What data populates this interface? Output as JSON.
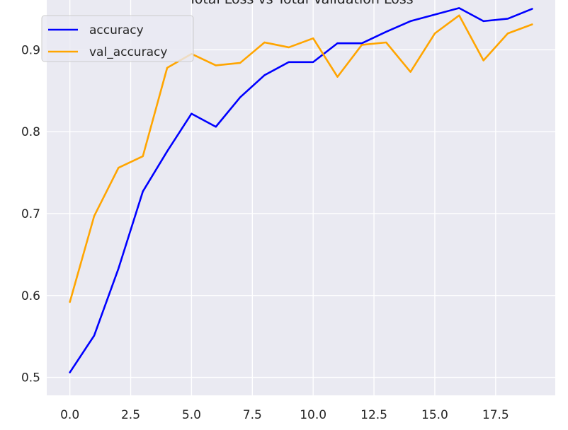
{
  "chart_data": {
    "type": "line",
    "title": "Total Loss vs Total Validation Loss",
    "xlabel": "",
    "ylabel": "",
    "xlim": [
      -0.95,
      19.95
    ],
    "ylim": [
      0.478,
      0.966
    ],
    "x_ticks": [
      0.0,
      2.5,
      5.0,
      7.5,
      10.0,
      12.5,
      15.0,
      17.5
    ],
    "x_tick_labels": [
      "0.0",
      "2.5",
      "5.0",
      "7.5",
      "10.0",
      "12.5",
      "15.0",
      "17.5"
    ],
    "y_ticks": [
      0.5,
      0.6,
      0.7,
      0.8,
      0.9
    ],
    "y_tick_labels": [
      "0.5",
      "0.6",
      "0.7",
      "0.8",
      "0.9"
    ],
    "grid": true,
    "legend_position": "top-left",
    "background_color": "#eaeaf2",
    "x": [
      0,
      1,
      2,
      3,
      4,
      5,
      6,
      7,
      8,
      9,
      10,
      11,
      12,
      13,
      14,
      15,
      16,
      17,
      18,
      19
    ],
    "series": [
      {
        "name": "accuracy",
        "color": "#0000ff",
        "values": [
          0.506,
          0.551,
          0.633,
          0.727,
          0.776,
          0.822,
          0.806,
          0.842,
          0.869,
          0.885,
          0.885,
          0.908,
          0.908,
          0.922,
          0.935,
          0.943,
          0.951,
          0.935,
          0.938,
          0.95
        ]
      },
      {
        "name": "val_accuracy",
        "color": "#ffa500",
        "values": [
          0.592,
          0.697,
          0.756,
          0.77,
          0.878,
          0.895,
          0.881,
          0.884,
          0.909,
          0.903,
          0.914,
          0.867,
          0.906,
          0.909,
          0.873,
          0.92,
          0.942,
          0.887,
          0.92,
          0.931
        ]
      }
    ]
  }
}
